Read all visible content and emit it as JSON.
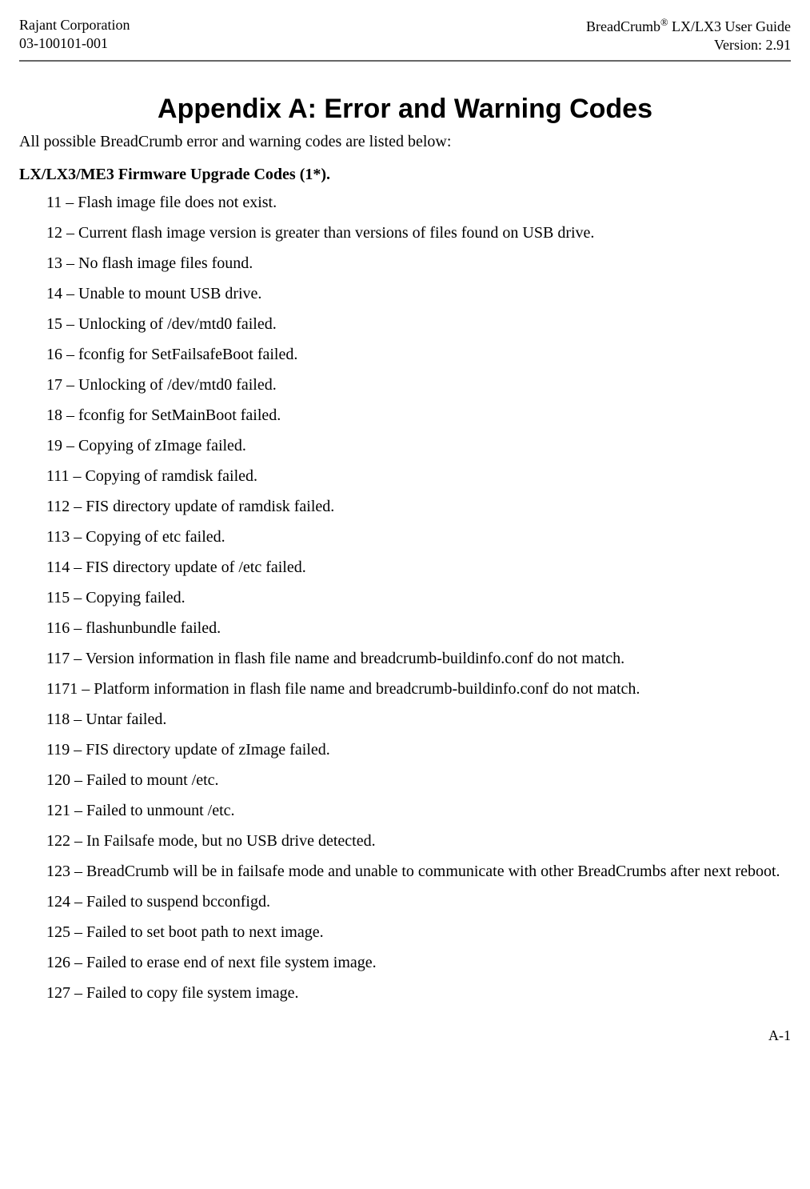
{
  "header": {
    "left_line1": "Rajant Corporation",
    "left_line2": "03-100101-001",
    "right_line1_pre": "BreadCrumb",
    "right_line1_sup": "®",
    "right_line1_post": " LX/LX3 User Guide",
    "right_line2": "Version:  2.91"
  },
  "title": "Appendix A:  Error and Warning Codes",
  "intro": "All possible BreadCrumb error and warning codes are listed below:",
  "section_heading": "LX/LX3/ME3 Firmware Upgrade Codes (1*).",
  "codes": [
    "11 – Flash image file does not exist.",
    "12 – Current flash image version is greater than versions of files found on USB drive.",
    "13 – No flash image files found.",
    "14 – Unable to mount USB drive.",
    "15 – Unlocking of /dev/mtd0 failed.",
    "16 – fconfig for SetFailsafeBoot failed.",
    "17 – Unlocking of /dev/mtd0 failed.",
    "18 – fconfig for SetMainBoot failed.",
    "19 – Copying of zImage failed.",
    "111 – Copying of ramdisk failed.",
    "112 – FIS directory update of ramdisk failed.",
    "113 – Copying of etc failed.",
    "114 – FIS directory update of /etc failed.",
    "115 – Copying failed.",
    "116 – flashunbundle failed.",
    "117 – Version information in flash file name and breadcrumb-buildinfo.conf do not match.",
    "1171 – Platform information in flash file name and breadcrumb-buildinfo.conf do not match.",
    "118 – Untar failed.",
    "119 – FIS directory update of zImage failed.",
    "120 – Failed to mount /etc.",
    "121 – Failed to unmount /etc.",
    "122 – In Failsafe mode, but no USB drive detected.",
    "123 – BreadCrumb will be in failsafe mode and unable to communicate with other BreadCrumbs after next reboot.",
    "124 – Failed to suspend bcconfigd.",
    "125 – Failed to set boot path to next image.",
    "126 – Failed to erase end of next file system image.",
    "127 – Failed to copy file system image."
  ],
  "footer": "A-1"
}
